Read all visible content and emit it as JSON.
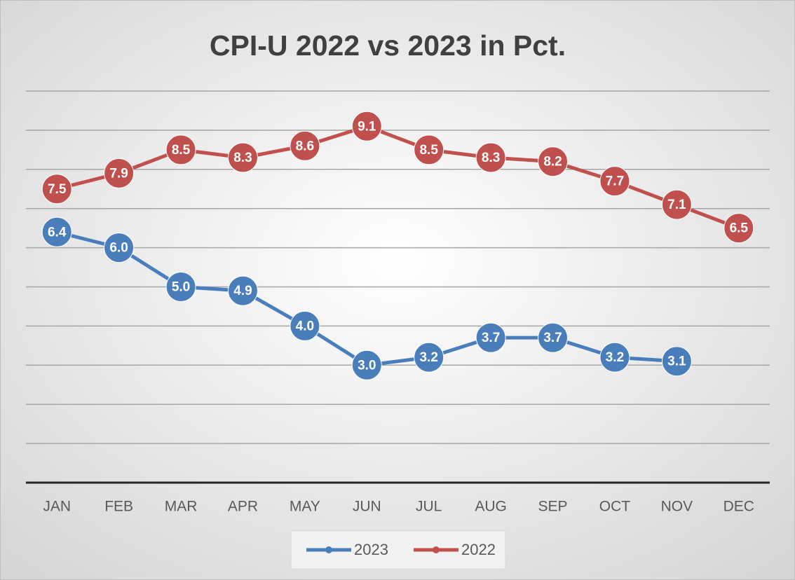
{
  "chart_data": {
    "type": "line",
    "title": "CPI-U 2022 vs 2023 in Pct.",
    "categories": [
      "JAN",
      "FEB",
      "MAR",
      "APR",
      "MAY",
      "JUN",
      "JUL",
      "AUG",
      "SEP",
      "OCT",
      "NOV",
      "DEC"
    ],
    "series": [
      {
        "name": "2023",
        "color": "#4a7ebb",
        "values": [
          6.4,
          6,
          5,
          4.9,
          4,
          3,
          3.2,
          3.7,
          3.7,
          3.2,
          3.1,
          null
        ],
        "value_labels": [
          "6.4",
          "6.0",
          "5.0",
          "4.9",
          "4.0",
          "3.0",
          "3.2",
          "3.7",
          "3.7",
          "3.2",
          "3.1",
          null
        ]
      },
      {
        "name": "2022",
        "color": "#c0504d",
        "values": [
          7.5,
          7.9,
          8.5,
          8.3,
          8.6,
          9.1,
          8.5,
          8.3,
          8.2,
          7.7,
          7.1,
          6.5
        ],
        "value_labels": [
          "7.5",
          "7.9",
          "8.5",
          "8.3",
          "8.6",
          "9.1",
          "8.5",
          "8.3",
          "8.2",
          "7.7",
          "7.1",
          "6.5"
        ]
      }
    ],
    "ylim": [
      0,
      10
    ],
    "yticks": [
      0,
      1,
      2,
      3,
      4,
      5,
      6,
      7,
      8,
      9,
      10
    ],
    "grid": true,
    "legend": "bottom"
  }
}
